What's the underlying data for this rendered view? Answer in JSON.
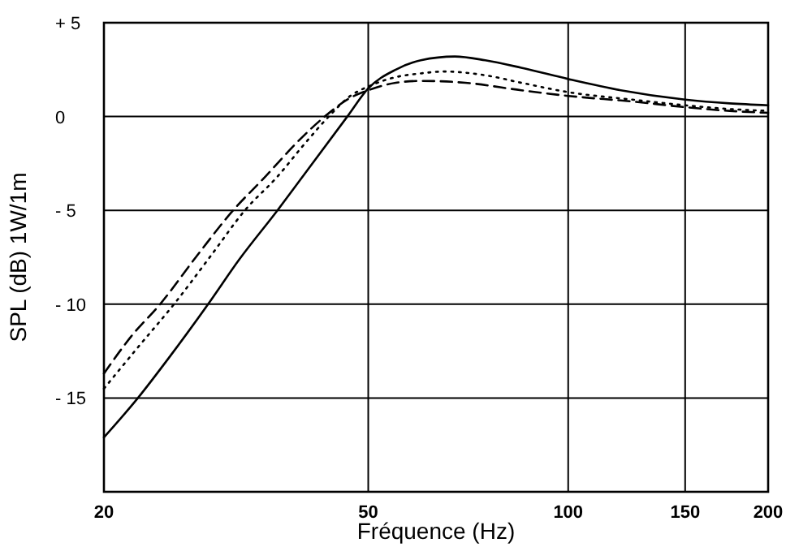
{
  "chart_data": {
    "type": "line",
    "xlabel": "Fréquence (Hz)",
    "ylabel": "SPL (dB) 1W/1m",
    "log": "x",
    "grid": true,
    "marker": "none",
    "xlim": [
      20,
      200
    ],
    "xticks": [
      20,
      50,
      100,
      150,
      200
    ],
    "ylim": [
      -20,
      5
    ],
    "yticks": [
      {
        "value": 5,
        "label": "+ 5"
      },
      0,
      {
        "value": -5,
        "label": "- 5"
      },
      {
        "value": -10,
        "label": "- 10"
      },
      {
        "value": -15,
        "label": "- 15"
      }
    ],
    "series": [
      {
        "color": "#000000",
        "line_style": "solid",
        "x": [
          20,
          22.5,
          25,
          28.7,
          32,
          36.5,
          41,
          46.5,
          50,
          55,
          60,
          67.5,
          75,
          85,
          100,
          120,
          150,
          175,
          200
        ],
        "values": [
          -17.1,
          -15,
          -12.9,
          -10,
          -7.6,
          -5,
          -2.6,
          0,
          1.5,
          2.5,
          3.0,
          3.2,
          3.0,
          2.6,
          2.0,
          1.4,
          0.9,
          0.7,
          0.6
        ]
      },
      {
        "color": "#000000",
        "line_style": "dashed",
        "x": [
          20,
          22,
          24.3,
          27.5,
          31.3,
          35,
          39,
          43,
          47,
          50,
          55,
          60,
          70,
          85,
          100,
          125,
          150,
          175,
          200
        ],
        "values": [
          -13.7,
          -11.7,
          -10,
          -7.5,
          -5,
          -3.2,
          -1.4,
          0,
          1.0,
          1.4,
          1.8,
          1.9,
          1.8,
          1.4,
          1.1,
          0.8,
          0.5,
          0.3,
          0.2
        ]
      },
      {
        "color": "#000000",
        "line_style": "dotted",
        "x": [
          20,
          22.5,
          25.5,
          29,
          32.6,
          36.5,
          40,
          43.6,
          47,
          50,
          55,
          60,
          65,
          75,
          85,
          100,
          125,
          150,
          175,
          200
        ],
        "values": [
          -14.5,
          -12.3,
          -10,
          -7.4,
          -5,
          -3.2,
          -1.5,
          0,
          1.1,
          1.6,
          2.1,
          2.3,
          2.4,
          2.2,
          1.8,
          1.3,
          0.9,
          0.6,
          0.4,
          0.3
        ]
      }
    ]
  }
}
